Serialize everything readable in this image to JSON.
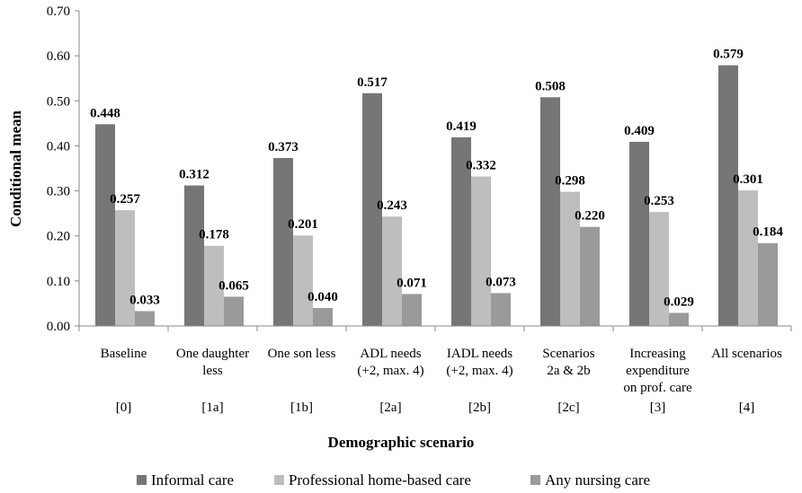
{
  "chart_data": {
    "type": "bar",
    "title": "",
    "xlabel": "Demographic scenario",
    "ylabel": "Conditional mean",
    "ylim": [
      0,
      0.7
    ],
    "yticks": [
      "0.00",
      "0.10",
      "0.20",
      "0.30",
      "0.40",
      "0.50",
      "0.60",
      "0.70"
    ],
    "grid": false,
    "legend_position": "bottom",
    "categories": [
      {
        "label": [
          "Baseline"
        ],
        "code": "[0]"
      },
      {
        "label": [
          "One daughter",
          "less"
        ],
        "code": "[1a]"
      },
      {
        "label": [
          "One son less"
        ],
        "code": "[1b]"
      },
      {
        "label": [
          "ADL needs",
          "(+2, max. 4)"
        ],
        "code": "[2a]"
      },
      {
        "label": [
          "IADL needs",
          "(+2, max. 4)"
        ],
        "code": "[2b]"
      },
      {
        "label": [
          "Scenarios",
          "2a & 2b"
        ],
        "code": "[2c]"
      },
      {
        "label": [
          "Increasing",
          "expenditure",
          "on prof. care"
        ],
        "code": "[3]"
      },
      {
        "label": [
          "All scenarios"
        ],
        "code": "[4]"
      }
    ],
    "series": [
      {
        "name": "Informal care",
        "color": "#767676",
        "values": [
          0.448,
          0.312,
          0.373,
          0.517,
          0.419,
          0.508,
          0.409,
          0.579
        ],
        "labels": [
          "0.448",
          "0.312",
          "0.373",
          "0.517",
          "0.419",
          "0.508",
          "0.409",
          "0.579"
        ]
      },
      {
        "name": "Professional home-based care",
        "color": "#bebebe",
        "values": [
          0.257,
          0.178,
          0.201,
          0.243,
          0.332,
          0.298,
          0.253,
          0.301
        ],
        "labels": [
          "0.257",
          "0.178",
          "0.201",
          "0.243",
          "0.332",
          "0.298",
          "0.253",
          "0.301"
        ]
      },
      {
        "name": "Any nursing care",
        "color": "#9a9a9a",
        "values": [
          0.033,
          0.065,
          0.04,
          0.071,
          0.073,
          0.22,
          0.029,
          0.184
        ],
        "labels": [
          "0.033",
          "0.065",
          "0.040",
          "0.071",
          "0.073",
          "0.220",
          "0.029",
          "0.184"
        ]
      }
    ]
  }
}
